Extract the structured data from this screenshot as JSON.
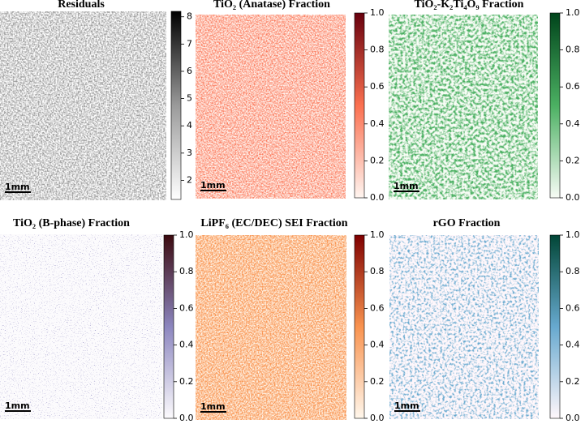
{
  "chart_data": [
    {
      "type": "heatmap",
      "title": "Residuals",
      "annotation": "1mm",
      "clim": [
        1.3,
        8.2
      ],
      "ticks": [
        2,
        3,
        4,
        5,
        6,
        7,
        8
      ],
      "colors": [
        "#ffffff",
        "#9a9a9a",
        "#000000"
      ]
    },
    {
      "type": "heatmap",
      "title": "TiO₂ (Anatase) Fraction",
      "annotation": "1mm",
      "clim": [
        0,
        1
      ],
      "ticks": [
        {
          "value": 0,
          "label": "0.0"
        },
        0.2,
        0.4,
        0.6,
        0.8,
        {
          "value": 1,
          "label": "1.0"
        }
      ],
      "colors": [
        "#fff5f0",
        "#fb7050",
        "#67000d"
      ]
    },
    {
      "type": "heatmap",
      "title": "TiO₂-K₂Ti₄O₉ Fraction",
      "annotation": "1mm",
      "clim": [
        0,
        1
      ],
      "ticks": [
        {
          "value": 0,
          "label": "0.0"
        },
        0.2,
        0.4,
        0.6,
        0.8,
        {
          "value": 1,
          "label": "1.0"
        }
      ],
      "colors": [
        "#f7fcf5",
        "#4bb062",
        "#00441b"
      ]
    },
    {
      "type": "heatmap",
      "title": "TiO₂ (B-phase) Fraction",
      "annotation": "1mm",
      "clim": [
        0,
        1
      ],
      "ticks": [
        {
          "value": 0,
          "label": "0.0"
        },
        0.2,
        0.4,
        0.6,
        0.8,
        {
          "value": 1,
          "label": "1.0"
        }
      ],
      "colors": [
        "#fcfbfd",
        "#8c86bf",
        "#3b0a0f"
      ]
    },
    {
      "type": "heatmap",
      "title": "LiPF₆ (EC/DEC) SEI Fraction",
      "annotation": "1mm",
      "clim": [
        0,
        1
      ],
      "ticks": [
        {
          "value": 0,
          "label": "0.0"
        },
        0.2,
        0.4,
        0.6,
        0.8,
        {
          "value": 1,
          "label": "1.0"
        }
      ],
      "colors": [
        "#fff7ec",
        "#f9934f",
        "#7f0000"
      ]
    },
    {
      "type": "heatmap",
      "title": "rGO Fraction",
      "annotation": "1mm",
      "clim": [
        0,
        1
      ],
      "ticks": [
        {
          "value": 0,
          "label": "0.0"
        },
        0.2,
        0.4,
        0.6,
        0.8,
        {
          "value": 1,
          "label": "1.0"
        }
      ],
      "colors": [
        "#fff7fb",
        "#67a9cf",
        "#014636"
      ]
    }
  ]
}
